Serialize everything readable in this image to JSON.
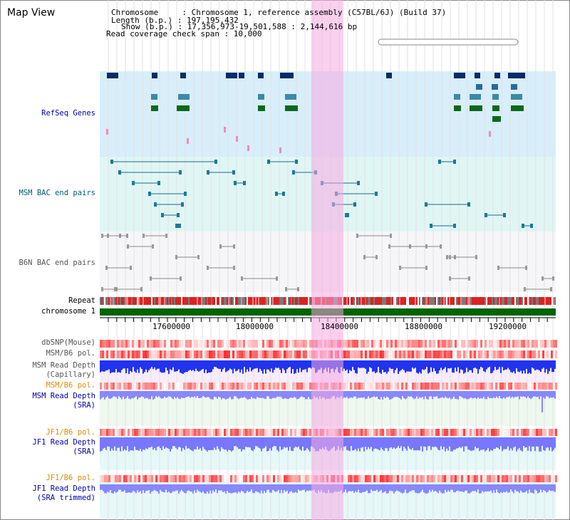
{
  "view_title": "Map View",
  "info": {
    "line1": "Chromosome     : Chromosome 1, reference assembly (C57BL/6J) (Build 37)",
    "line2": "Length (b.p.) : 197,195,432",
    "line3": "Show (b.p.) : 17,356,973-19,501,588 : 2,144,616 bp",
    "line4": "Read coverage check span : 10,000"
  },
  "tracks": {
    "refseq": "RefSeq Genes",
    "msm_bac": "MSM BAC end pairs",
    "b6n_bac": "B6N BAC end pairs",
    "repeat": "Repeat",
    "chromosome": "chromosome 1",
    "dbsnp": "dbSNP(Mouse)",
    "msm_b6_pol": "MSM/B6 pol.",
    "msm_depth_cap_1": "MSM Read Depth",
    "msm_depth_cap_2": "(Capillary)",
    "msm_b6_pol_2": "MSM/B6 pol.",
    "msm_depth_sra_1": "MSM Read Depth",
    "msm_depth_sra_2": "(SRA)",
    "jf1_b6_pol": "JF1/B6 pol.",
    "jf1_depth_sra_1": "JF1 Read Depth",
    "jf1_depth_sra_2": "(SRA)",
    "jf1_b6_pol_2": "JF1/B6 pol.",
    "jf1_depth_trim_1": "JF1 Read Depth",
    "jf1_depth_trim_2": "(SRA trimmed)"
  },
  "axis": {
    "ticks": [
      "17600000",
      "18000000",
      "18400000",
      "18800000",
      "19200000"
    ]
  },
  "colors": {
    "refseq_bg": "#d8eefa",
    "msm_bac_bg": "#e0f6f4",
    "b6n_bac_bg": "#f4f4f6",
    "repeat": "#dd2222",
    "chromosome": "#006400",
    "highlight": "#f5aae1",
    "depth_capillary": "#2233ee",
    "depth_sra": "#8888ff"
  }
}
